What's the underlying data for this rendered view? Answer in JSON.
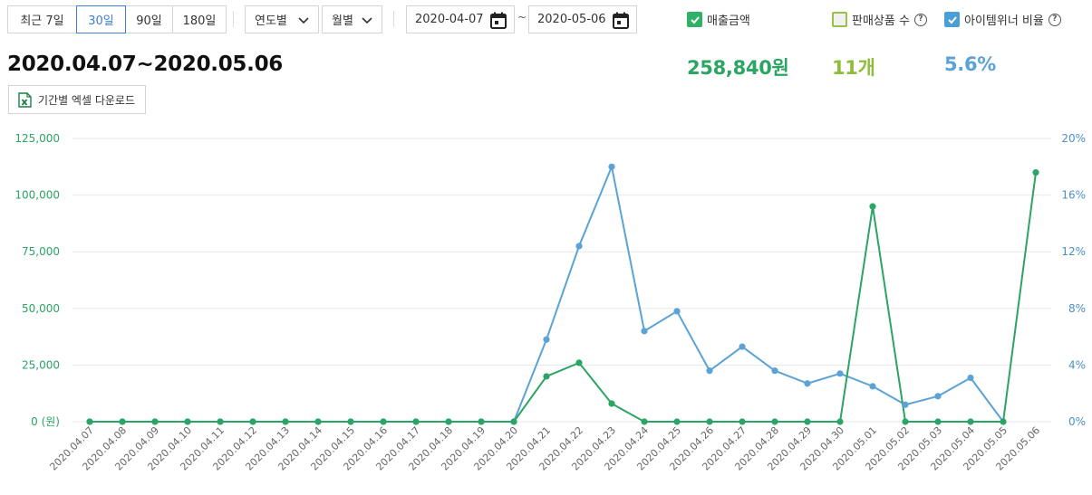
{
  "period_buttons": [
    {
      "label": "최근 7일"
    },
    {
      "label": "30일"
    },
    {
      "label": "90일"
    },
    {
      "label": "180일"
    }
  ],
  "selects": {
    "year_label": "연도별",
    "month_label": "월별"
  },
  "date_range": {
    "start": "2020-04-07",
    "separator": "~",
    "end": "2020-05-06"
  },
  "checkboxes": {
    "sales": {
      "label": "매출금액",
      "checked": true,
      "color": "#2fb168"
    },
    "products": {
      "label": "판매상품 수",
      "checked": false,
      "color": "#9bbf4a"
    },
    "ratio": {
      "label": "아이템위너 비율",
      "checked": true,
      "color": "#4a9fd8"
    }
  },
  "summary": {
    "range_title": "2020.04.07~2020.05.06",
    "sales_total": "258,840원",
    "product_count": "11개",
    "winner_ratio": "5.6%"
  },
  "excel_button": {
    "label": "기간별 엑셀 다운로드"
  },
  "colors": {
    "sales": "#2aa563",
    "ratio": "#5ba3d6",
    "grid": "#e8e8e8"
  },
  "chart_data": {
    "type": "line",
    "x": [
      "2020.04.07",
      "2020.04.08",
      "2020.04.09",
      "2020.04.10",
      "2020.04.11",
      "2020.04.12",
      "2020.04.13",
      "2020.04.14",
      "2020.04.15",
      "2020.04.16",
      "2020.04.17",
      "2020.04.18",
      "2020.04.19",
      "2020.04.20",
      "2020.04.21",
      "2020.04.22",
      "2020.04.23",
      "2020.04.24",
      "2020.04.25",
      "2020.04.26",
      "2020.04.27",
      "2020.04.28",
      "2020.04.29",
      "2020.04.30",
      "2020.05.01",
      "2020.05.02",
      "2020.05.03",
      "2020.05.04",
      "2020.05.05",
      "2020.05.06"
    ],
    "series": [
      {
        "axis": "left",
        "values": [
          0,
          0,
          0,
          0,
          0,
          0,
          0,
          0,
          0,
          0,
          0,
          0,
          0,
          0,
          20000,
          26000,
          8000,
          0,
          0,
          0,
          0,
          0,
          0,
          0,
          95000,
          0,
          0,
          0,
          0,
          110000
        ]
      },
      {
        "axis": "right",
        "values": [
          0,
          0,
          0,
          0,
          0,
          0,
          0,
          0,
          0,
          0,
          0,
          0,
          0,
          0,
          5.8,
          12.4,
          18.0,
          6.4,
          7.8,
          3.6,
          5.3,
          3.6,
          2.7,
          3.4,
          2.5,
          1.2,
          1.8,
          3.1,
          0,
          null
        ]
      }
    ],
    "left_axis": {
      "ticks": [
        "0 (원)",
        "25,000",
        "50,000",
        "75,000",
        "100,000",
        "125,000"
      ],
      "ylim": [
        0,
        125000
      ]
    },
    "right_axis": {
      "ticks": [
        "0%",
        "4%",
        "8%",
        "12%",
        "16%",
        "20%"
      ],
      "ylim": [
        0,
        20
      ]
    },
    "grid": true
  }
}
